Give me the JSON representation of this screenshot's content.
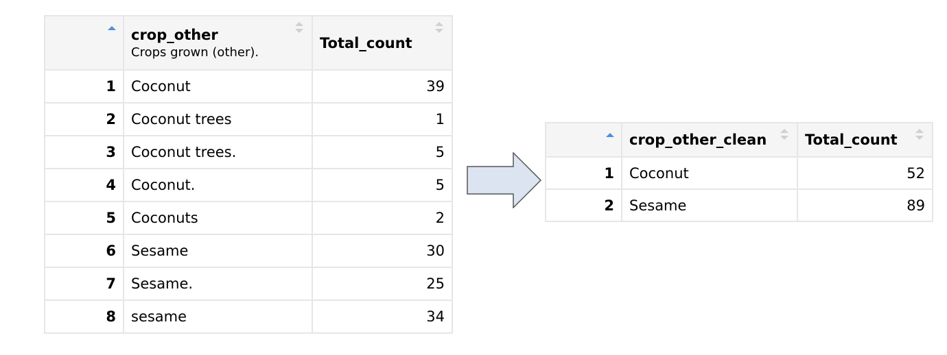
{
  "left_table": {
    "columns": [
      {
        "label": "",
        "subtitle": ""
      },
      {
        "label": "crop_other",
        "subtitle": "Crops grown (other)."
      },
      {
        "label": "Total_count",
        "subtitle": ""
      }
    ],
    "rows": [
      {
        "index": "1",
        "name": "Coconut",
        "count": "39"
      },
      {
        "index": "2",
        "name": "Coconut trees",
        "count": "1"
      },
      {
        "index": "3",
        "name": "Coconut trees.",
        "count": "5"
      },
      {
        "index": "4",
        "name": "Coconut.",
        "count": "5"
      },
      {
        "index": "5",
        "name": "Coconuts",
        "count": "2"
      },
      {
        "index": "6",
        "name": "Sesame",
        "count": "30"
      },
      {
        "index": "7",
        "name": "Sesame.",
        "count": "25"
      },
      {
        "index": "8",
        "name": "sesame",
        "count": "34"
      }
    ]
  },
  "right_table": {
    "columns": [
      {
        "label": ""
      },
      {
        "label": "crop_other_clean"
      },
      {
        "label": "Total_count"
      }
    ],
    "rows": [
      {
        "index": "1",
        "name": "Coconut",
        "count": "52"
      },
      {
        "index": "2",
        "name": "Sesame",
        "count": "89"
      }
    ]
  },
  "colors": {
    "sort_active": "#4a90e2",
    "sort_inactive": "#d0d0d0",
    "header_bg": "#f5f5f5",
    "border": "#e6e6e6",
    "arrow_fill": "#dbe4f0",
    "arrow_stroke": "#555555"
  },
  "icons": {
    "sort_active": "sort-ascending-icon",
    "sort_inactive": "sort-both-icon",
    "arrow": "right-arrow-icon"
  }
}
